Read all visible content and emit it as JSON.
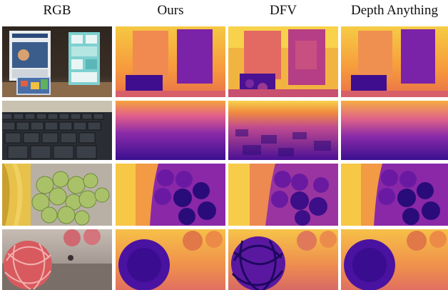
{
  "figure": {
    "columns": [
      "RGB",
      "Ours",
      "DFV",
      "Depth Anything"
    ],
    "rows": [
      {
        "scene": "books"
      },
      {
        "scene": "keyboard"
      },
      {
        "scene": "fruit"
      },
      {
        "scene": "wicker-balls"
      }
    ]
  }
}
